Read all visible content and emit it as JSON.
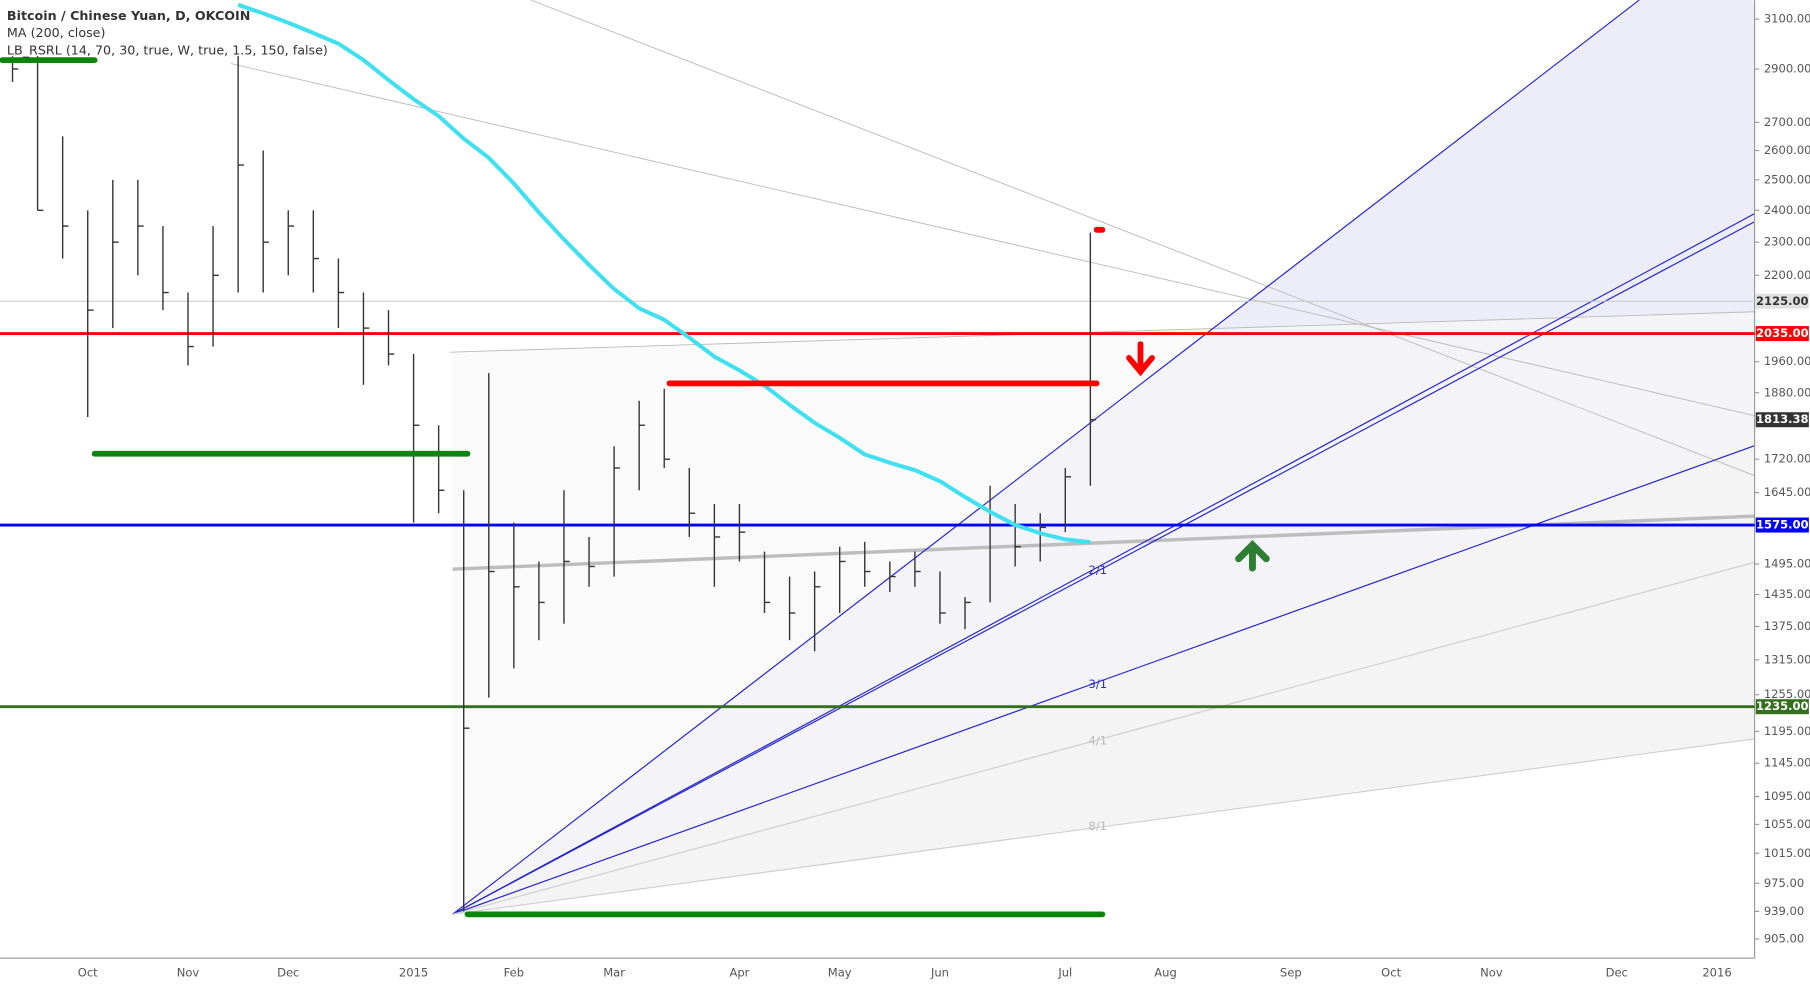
{
  "chart_data": {
    "type": "ohlc",
    "title": "Bitcoin / Chinese Yuan, D, OKCOIN",
    "indicators": [
      "MA (200, close)",
      "LB_RSRL (14, 70, 30, true, W, true, 1.5, 150, false)"
    ],
    "log_scale": true,
    "ylim": [
      882,
      3180
    ],
    "yticks": [
      {
        "value": 3100,
        "label": "3100.00"
      },
      {
        "value": 2900,
        "label": "2900.00"
      },
      {
        "value": 2700,
        "label": "2700.00"
      },
      {
        "value": 2600,
        "label": "2600.00"
      },
      {
        "value": 2500,
        "label": "2500.00"
      },
      {
        "value": 2400,
        "label": "2400.00"
      },
      {
        "value": 2300,
        "label": "2300.00"
      },
      {
        "value": 2200,
        "label": "2200.00"
      },
      {
        "value": 1960,
        "label": "1960.00"
      },
      {
        "value": 1880,
        "label": "1880.00"
      },
      {
        "value": 1720,
        "label": "1720.00"
      },
      {
        "value": 1645,
        "label": "1645.00"
      },
      {
        "value": 1495,
        "label": "1495.00"
      },
      {
        "value": 1435,
        "label": "1435.00"
      },
      {
        "value": 1375,
        "label": "1375.00"
      },
      {
        "value": 1315,
        "label": "1315.00"
      },
      {
        "value": 1255,
        "label": "1255.00"
      },
      {
        "value": 1195,
        "label": "1195.00"
      },
      {
        "value": 1145,
        "label": "1145.00"
      },
      {
        "value": 1095,
        "label": "1095.00"
      },
      {
        "value": 1055,
        "label": "1055.00"
      },
      {
        "value": 1015,
        "label": "1015.00"
      },
      {
        "value": 975,
        "label": "975.00"
      },
      {
        "value": 939,
        "label": "939.00"
      },
      {
        "value": 905,
        "label": "905.00"
      }
    ],
    "price_lines": [
      {
        "value": 2125,
        "label": "2125.00",
        "color": "#c8c8c8",
        "tag_color": "#e0e0e0",
        "text_color": "#333333"
      },
      {
        "value": 2035,
        "label": "2035.00",
        "color": "#ff0000",
        "tag_color": "#ff0000",
        "text_color": "#ffffff"
      },
      {
        "value": 1575,
        "label": "1575.00",
        "color": "#0000ff",
        "tag_color": "#0000ff",
        "text_color": "#ffffff"
      },
      {
        "value": 1235,
        "label": "1235.00",
        "color": "#336f1c",
        "tag_color": "#336f1c",
        "text_color": "#ffffff"
      }
    ],
    "last_price": {
      "value": 1813.38,
      "label": "1813.38",
      "color": "#333333"
    },
    "categories": [
      null,
      null,
      null,
      "Oct",
      null,
      null,
      null,
      "Nov",
      null,
      null,
      null,
      "Dec",
      null,
      null,
      null,
      null,
      "2015",
      null,
      null,
      null,
      "Feb",
      null,
      null,
      null,
      "Mar",
      null,
      null,
      null,
      null,
      "Apr",
      null,
      null,
      null,
      "May",
      null,
      null,
      null,
      "Jun",
      null,
      null,
      null,
      null,
      "Jul",
      null,
      null,
      null,
      "Aug",
      null,
      null,
      null,
      null,
      "Sep",
      null,
      null,
      null,
      "Oct",
      null,
      null,
      null,
      "Nov",
      null,
      null,
      null,
      null,
      "Dec",
      null,
      null,
      null,
      "2016",
      null
    ],
    "high": [
      2950,
      2950,
      2650,
      2400,
      2500,
      2500,
      2350,
      2150,
      2350,
      2950,
      2600,
      2400,
      2400,
      2250,
      2150,
      2100,
      1980,
      1800,
      1650,
      1930,
      1580,
      1500,
      1650,
      1550,
      1750,
      1860,
      1890,
      1700,
      1620,
      1620,
      1520,
      1470,
      1480,
      1530,
      1540,
      1500,
      1520,
      1480,
      1430,
      1660,
      1620,
      1600,
      1700,
      2330,
      null,
      null,
      null,
      null,
      null,
      null,
      null,
      null,
      null,
      null,
      null,
      null,
      null,
      null,
      null,
      null,
      null,
      null,
      null,
      null,
      null,
      null,
      null,
      null,
      null,
      null
    ],
    "low": [
      2850,
      2400,
      2250,
      1820,
      2050,
      2200,
      2100,
      1950,
      2000,
      2150,
      2150,
      2200,
      2150,
      2050,
      1900,
      1950,
      1580,
      1600,
      939,
      1250,
      1300,
      1350,
      1380,
      1450,
      1470,
      1650,
      1700,
      1550,
      1450,
      1500,
      1400,
      1350,
      1330,
      1400,
      1450,
      1440,
      1450,
      1380,
      1370,
      1420,
      1490,
      1500,
      1560,
      1660,
      null,
      null,
      null,
      null,
      null,
      null,
      null,
      null,
      null,
      null,
      null,
      null,
      null,
      null,
      null,
      null,
      null,
      null,
      null,
      null,
      null,
      null,
      null,
      null,
      null,
      null
    ],
    "close": [
      2900,
      2400,
      2350,
      2100,
      2300,
      2350,
      2150,
      2000,
      2200,
      2550,
      2300,
      2350,
      2250,
      2150,
      2050,
      1980,
      1800,
      1650,
      1200,
      1480,
      1450,
      1420,
      1500,
      1490,
      1700,
      1800,
      1720,
      1600,
      1550,
      1560,
      1420,
      1400,
      1450,
      1500,
      1480,
      1470,
      1480,
      1400,
      1420,
      1600,
      1530,
      1570,
      1680,
      1813.38,
      null,
      null,
      null,
      null,
      null,
      null,
      null,
      null,
      null,
      null,
      null,
      null,
      null,
      null,
      null,
      null,
      null,
      null,
      null,
      null,
      null,
      null,
      null,
      null,
      null,
      null
    ],
    "ma": [
      null,
      null,
      null,
      null,
      null,
      null,
      null,
      null,
      null,
      3160,
      3124,
      3085,
      3043,
      3000,
      2935,
      2857,
      2785,
      2723,
      2642,
      2575,
      2488,
      2393,
      2308,
      2231,
      2160,
      2105,
      2073,
      2024,
      1973,
      1937,
      1898,
      1850,
      1806,
      1770,
      1731,
      1712,
      1695,
      1670,
      1635,
      1603,
      1575,
      1558,
      1545,
      1539,
      null,
      null,
      null,
      null,
      null,
      null,
      null,
      null,
      null,
      null,
      null,
      null,
      null,
      null,
      null,
      null,
      null,
      null,
      null,
      null,
      null,
      null,
      null,
      null,
      null,
      null
    ],
    "bar_color": "#333333",
    "ma_color": "#40e0f0",
    "fan_labels": [
      "2/1",
      "3/1",
      "4/1",
      "8/1"
    ]
  }
}
